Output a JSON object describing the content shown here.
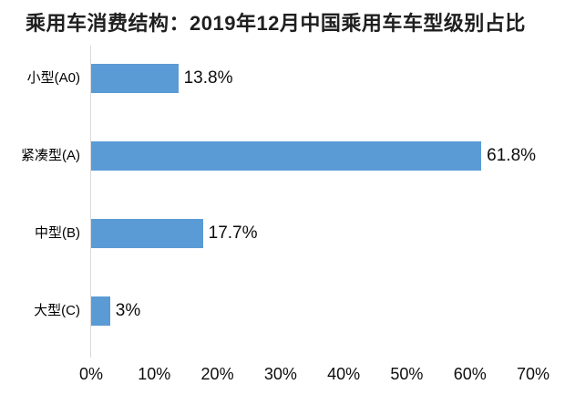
{
  "chart_data": {
    "type": "bar",
    "orientation": "horizontal",
    "title": "乘用车消费结构：2019年12月中国乘用车车型级别占比",
    "categories": [
      "小型(A0)",
      "紧凑型(A)",
      "中型(B)",
      "大型(C)"
    ],
    "values": [
      13.8,
      61.8,
      17.7,
      3
    ],
    "value_labels": [
      "13.8%",
      "61.8%",
      "17.7%",
      "3%"
    ],
    "xlabel": "",
    "ylabel": "",
    "xlim": [
      0,
      70
    ],
    "x_tick_labels": [
      "0%",
      "10%",
      "20%",
      "30%",
      "40%",
      "50%",
      "60%",
      "70%"
    ],
    "grid": false,
    "legend": false,
    "colors": {
      "bar": "#5B9BD5",
      "axis_line": "#D9D9D9",
      "title_text": "#1F1F1F",
      "label_text": "#0D0D0D",
      "background": "#FFFFFF"
    }
  }
}
